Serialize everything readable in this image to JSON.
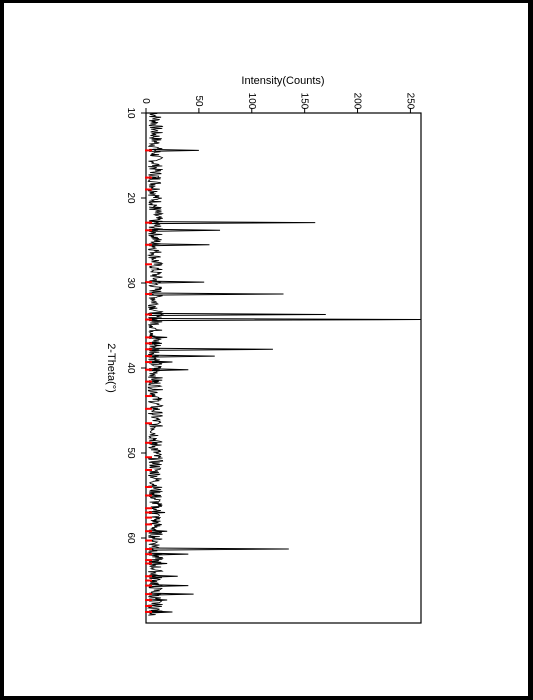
{
  "chart_data": {
    "type": "line",
    "title": "",
    "xlabel": "2-Theta(°)",
    "ylabel": "Intensity(Counts)",
    "xlim": [
      10,
      70
    ],
    "ylim": [
      0,
      260
    ],
    "x_ticks": [
      10,
      20,
      30,
      40,
      50,
      60
    ],
    "y_ticks": [
      0,
      50,
      100,
      150,
      200,
      250
    ],
    "x_tick_labels": [
      "10",
      "20",
      "30",
      "40",
      "50",
      "60"
    ],
    "y_tick_labels": [
      "0",
      "50",
      "100",
      "150",
      "200",
      "250"
    ],
    "rotation": "rotated 90° clockwise",
    "line_color": "#000000",
    "marker_color": "#ff0000",
    "grid": false,
    "legend": "none",
    "peaks": [
      {
        "x": 14.4,
        "y": 50
      },
      {
        "x": 17.6,
        "y": 10
      },
      {
        "x": 21.2,
        "y": 14
      },
      {
        "x": 22.9,
        "y": 160
      },
      {
        "x": 23.8,
        "y": 70
      },
      {
        "x": 25.5,
        "y": 60
      },
      {
        "x": 29.9,
        "y": 55
      },
      {
        "x": 31.3,
        "y": 130
      },
      {
        "x": 33.7,
        "y": 170
      },
      {
        "x": 34.3,
        "y": 260
      },
      {
        "x": 36.4,
        "y": 20
      },
      {
        "x": 37.1,
        "y": 15
      },
      {
        "x": 37.8,
        "y": 120
      },
      {
        "x": 38.6,
        "y": 65
      },
      {
        "x": 39.3,
        "y": 25
      },
      {
        "x": 40.2,
        "y": 40
      },
      {
        "x": 41.6,
        "y": 10
      },
      {
        "x": 48.8,
        "y": 10
      },
      {
        "x": 55.0,
        "y": 14
      },
      {
        "x": 57.0,
        "y": 18
      },
      {
        "x": 59.2,
        "y": 20
      },
      {
        "x": 61.3,
        "y": 135
      },
      {
        "x": 61.9,
        "y": 40
      },
      {
        "x": 63.0,
        "y": 20
      },
      {
        "x": 64.5,
        "y": 30
      },
      {
        "x": 65.6,
        "y": 40
      },
      {
        "x": 66.6,
        "y": 45
      },
      {
        "x": 67.3,
        "y": 20
      },
      {
        "x": 68.7,
        "y": 25
      }
    ],
    "reference_markers_x": [
      14.4,
      17.6,
      19.0,
      22.9,
      23.8,
      25.5,
      27.8,
      29.9,
      31.3,
      33.7,
      34.3,
      36.4,
      37.1,
      37.8,
      38.6,
      39.3,
      40.2,
      41.6,
      43.3,
      44.8,
      46.5,
      48.8,
      50.5,
      52.0,
      54.0,
      55.0,
      56.5,
      57.0,
      57.6,
      58.4,
      59.2,
      60.3,
      61.3,
      61.9,
      62.6,
      63.0,
      64.5,
      65.0,
      65.6,
      66.6,
      67.3,
      68.0,
      68.7
    ]
  }
}
